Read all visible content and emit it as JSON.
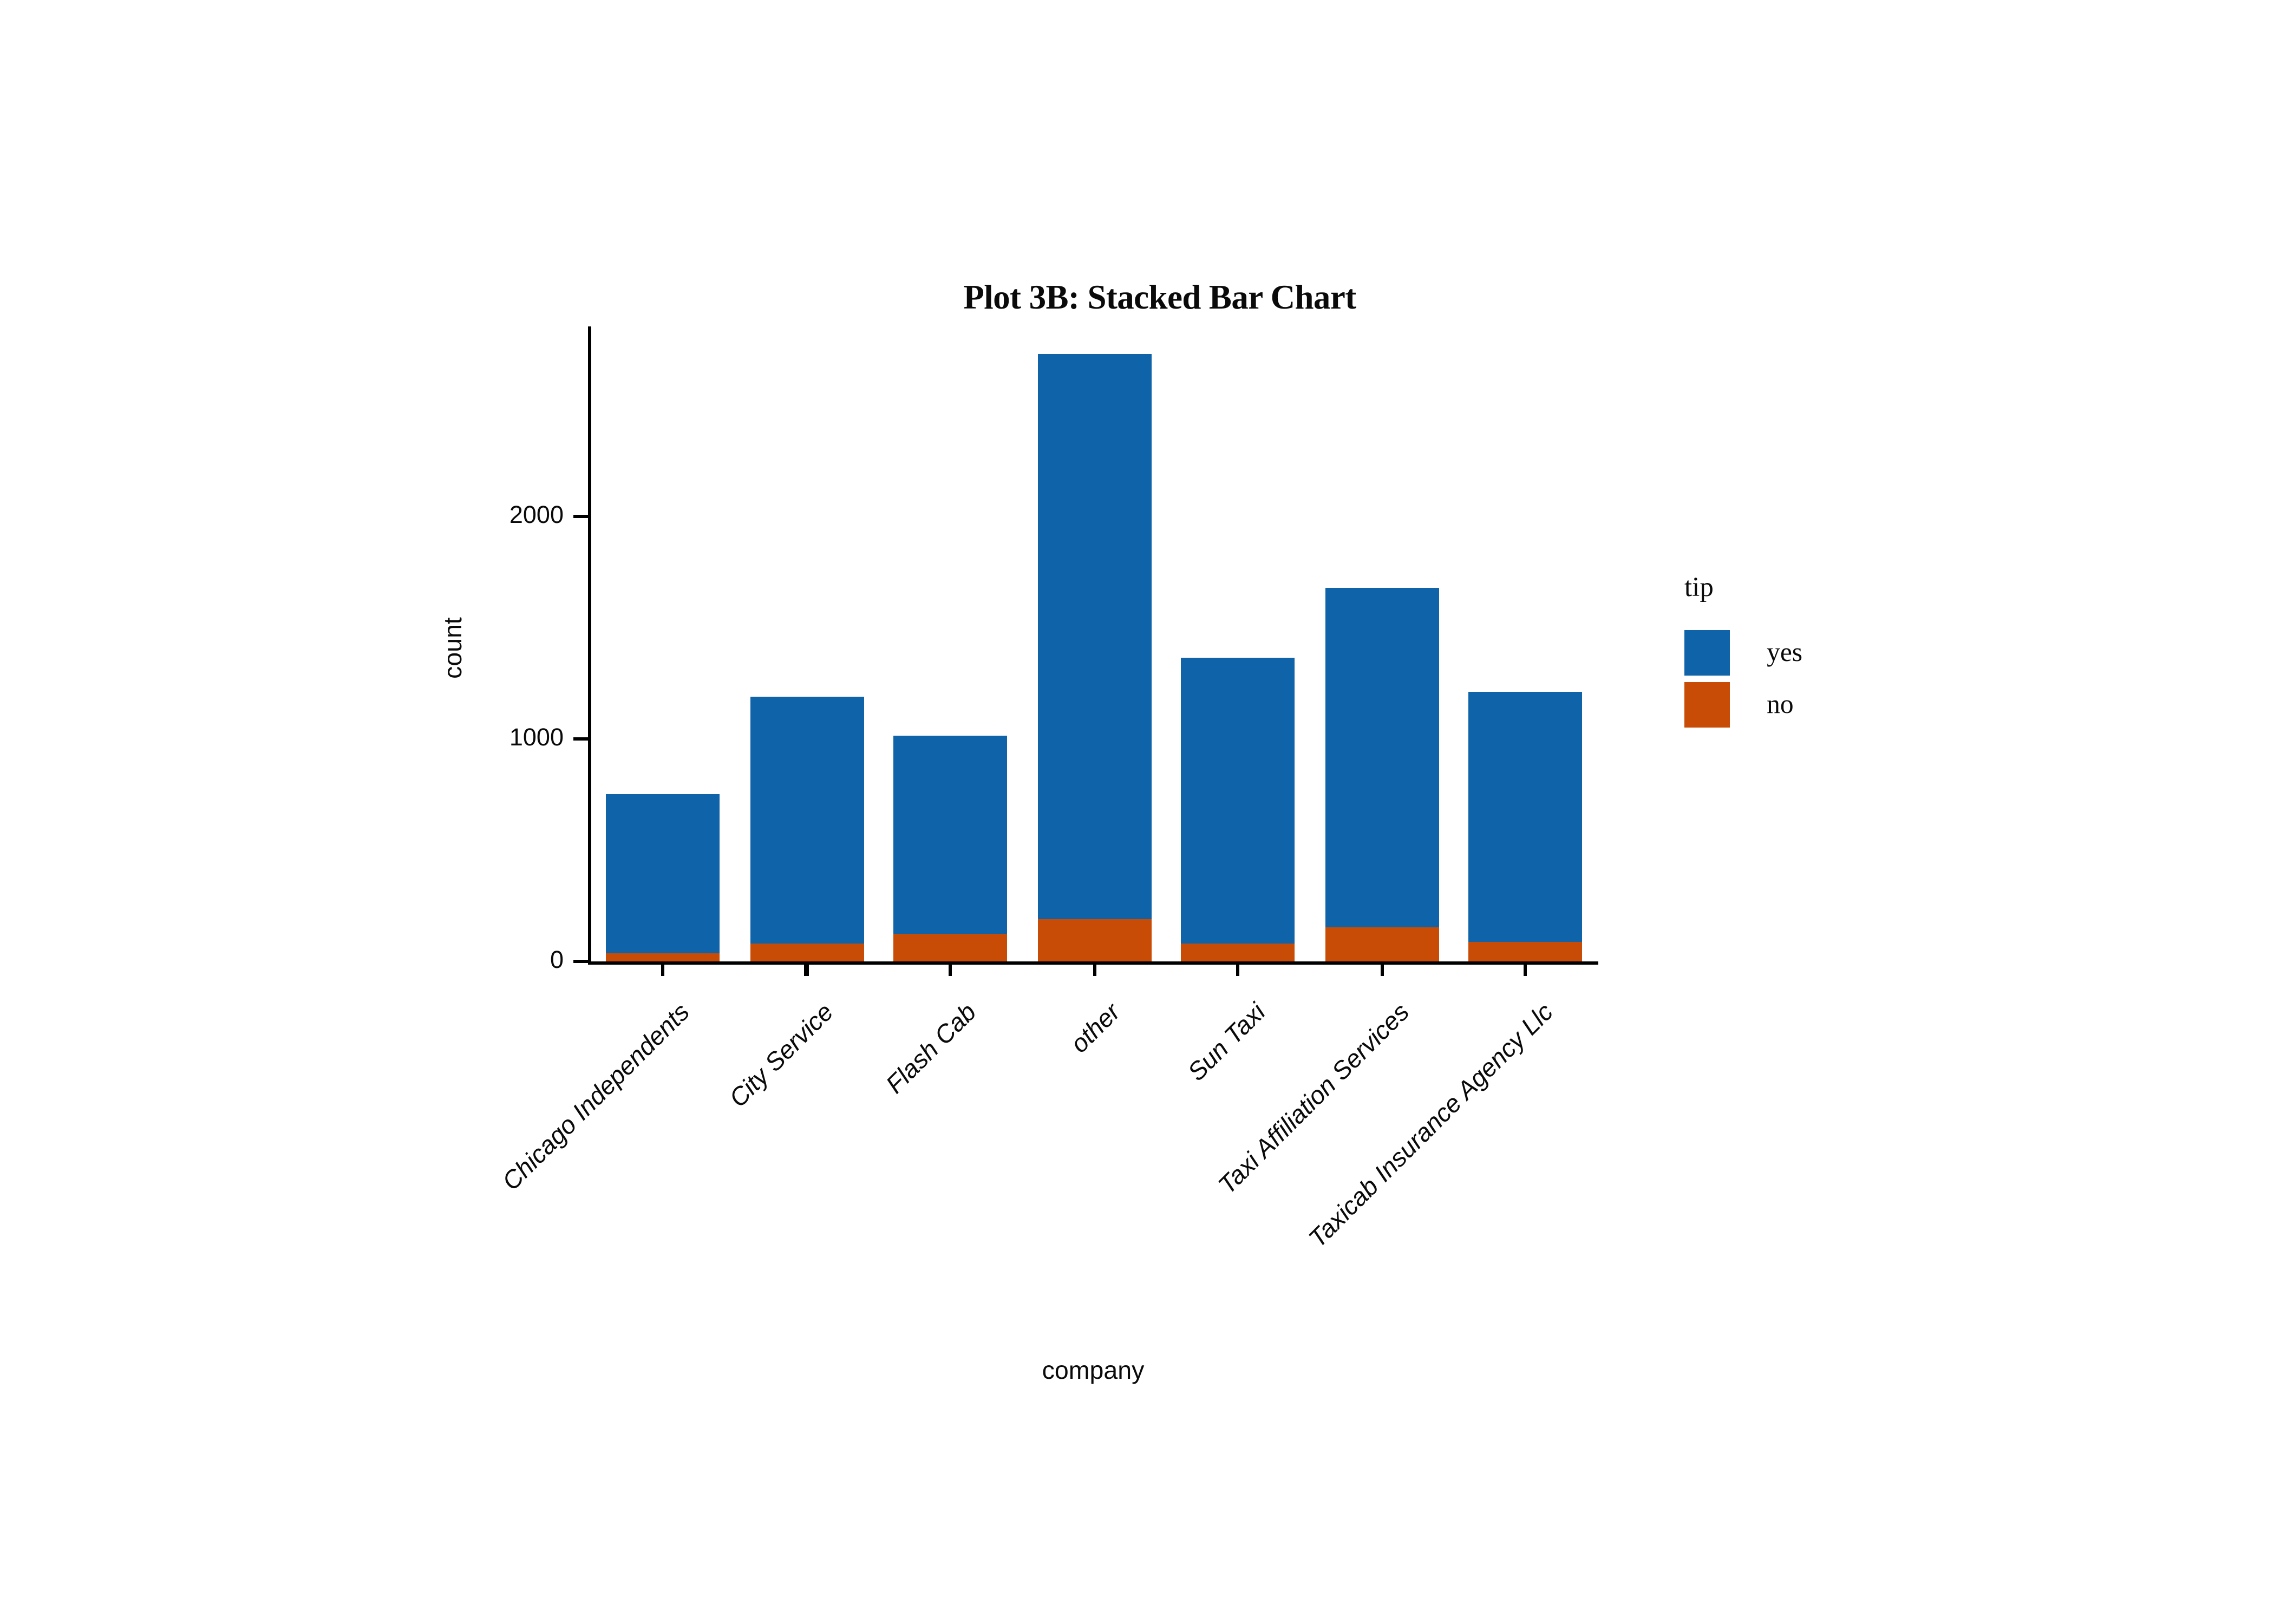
{
  "chart_data": {
    "type": "bar",
    "stacked": true,
    "title": "Plot 3B: Stacked Bar Chart",
    "xlabel": "company",
    "ylabel": "count",
    "categories": [
      "Chicago Independents",
      "City Service",
      "Flash Cab",
      "other",
      "Sun Taxi",
      "Taxi Affiliation Services",
      "Taxicab Insurance Agency Llc"
    ],
    "series": [
      {
        "name": "yes",
        "color": "#0f63a8",
        "values": [
          710,
          1105,
          890,
          2535,
          1285,
          1525,
          1120
        ]
      },
      {
        "name": "no",
        "color": "#c84c05",
        "values": [
          40,
          85,
          125,
          190,
          80,
          155,
          90
        ]
      }
    ],
    "stack_order_bottom_to_top": [
      "no",
      "yes"
    ],
    "totals": [
      750,
      1190,
      1015,
      2725,
      1365,
      1680,
      1210
    ],
    "yticks": [
      0,
      1000,
      2000
    ],
    "ylim": [
      0,
      2850
    ],
    "grid": false,
    "legend_position": "right",
    "axis_color": "#000000",
    "background_color": "#ffffff"
  },
  "legend": {
    "title": "tip",
    "items": [
      {
        "label": "yes",
        "color": "#0f63a8"
      },
      {
        "label": "no",
        "color": "#c84c05"
      }
    ]
  }
}
